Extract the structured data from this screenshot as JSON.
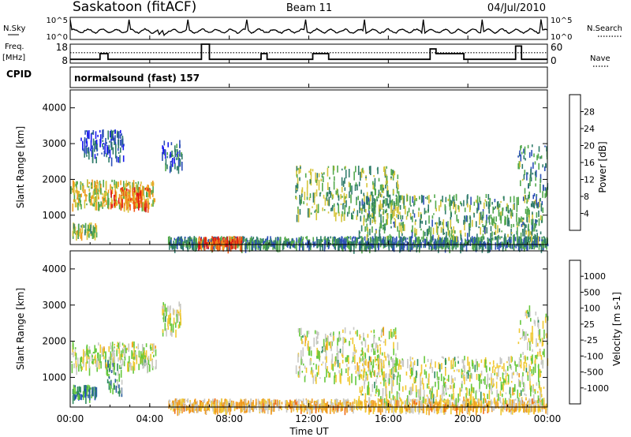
{
  "header": {
    "title": "Saskatoon (fitACF)",
    "beam": "Beam 11",
    "date": "04/Jul/2010"
  },
  "left_labels": {
    "nsky": "N.Sky",
    "freq": "Freq.",
    "freq_unit": "[MHz]",
    "cpid": "CPID"
  },
  "right_labels": {
    "nsearch": "N.Search",
    "nave": "Nave"
  },
  "strip_ticks": {
    "nsky_left": [
      "10^5",
      "10^0"
    ],
    "nsky_right": [
      "10^5",
      "10^0"
    ],
    "freq_left": [
      "18",
      "8"
    ],
    "nave_right": [
      "60",
      "0"
    ]
  },
  "cpid_text": "normalsound (fast) 157",
  "xlabel": "Time UT",
  "x_ticks": [
    "00:00",
    "04:00",
    "08:00",
    "12:00",
    "16:00",
    "20:00",
    "00:00"
  ],
  "chart_data": [
    {
      "type": "heatmap",
      "name": "power",
      "ylabel": "Slant Range [km]",
      "y_ticks": [
        "1000",
        "2000",
        "3000",
        "4000"
      ],
      "ylim": [
        180,
        4500
      ],
      "xlim_hours": [
        0,
        24
      ],
      "colorbar_label": "Power [dB]",
      "colorbar_ticks": [
        "4",
        "8",
        "12",
        "16",
        "20",
        "24",
        "28"
      ],
      "colorbar_colors": [
        "#1b1bf0",
        "#2c4fb8",
        "#2e7b6a",
        "#52a84c",
        "#d6c53a",
        "#f09a1e",
        "#f05a14",
        "#e01414"
      ],
      "echo_regions": [
        {
          "t": [
            0.0,
            4.3
          ],
          "r": [
            1300,
            2000
          ],
          "level": 0.55
        },
        {
          "t": [
            2.0,
            4.0
          ],
          "r": [
            1300,
            1800
          ],
          "level": 0.78
        },
        {
          "t": [
            0.1,
            1.3
          ],
          "r": [
            500,
            800
          ],
          "level": 0.5
        },
        {
          "t": [
            0.5,
            2.7
          ],
          "r": [
            2600,
            3400
          ],
          "level": 0.2
        },
        {
          "t": [
            4.6,
            5.6
          ],
          "r": [
            2300,
            3100
          ],
          "level": 0.25
        },
        {
          "t": [
            4.9,
            24.0
          ],
          "r": [
            180,
            420
          ],
          "level": 0.32
        },
        {
          "t": [
            6.4,
            8.6
          ],
          "r": [
            180,
            420
          ],
          "level": 0.8
        },
        {
          "t": [
            11.3,
            16.5
          ],
          "r": [
            1000,
            2400
          ],
          "level": 0.45
        },
        {
          "t": [
            14.5,
            23.8
          ],
          "r": [
            400,
            1600
          ],
          "level": 0.4
        },
        {
          "t": [
            22.5,
            24.0
          ],
          "r": [
            1300,
            3000
          ],
          "level": 0.35
        }
      ]
    },
    {
      "type": "heatmap",
      "name": "velocity",
      "ylabel": "Slant Range [km]",
      "y_ticks": [
        "1000",
        "2000",
        "3000",
        "4000"
      ],
      "ylim": [
        180,
        4500
      ],
      "xlim_hours": [
        0,
        24
      ],
      "colorbar_label": "Velocity [m s-1]",
      "colorbar_ticks": [
        "1000",
        "500",
        "100",
        "25",
        "-25",
        "-100",
        "-500",
        "-1000"
      ],
      "colorbar_colors": [
        "#1b3fd0",
        "#2c5fa0",
        "#2e8c5e",
        "#66c83c",
        "#c8c8c4",
        "#f0c830",
        "#f09a1e",
        "#f06a14",
        "#e01414"
      ],
      "echo_regions": [
        {
          "t": [
            0.0,
            4.3
          ],
          "r": [
            1300,
            2000
          ],
          "level": 0.5
        },
        {
          "t": [
            0.1,
            1.3
          ],
          "r": [
            500,
            800
          ],
          "level": 0.25
        },
        {
          "t": [
            1.8,
            2.6
          ],
          "r": [
            600,
            1500
          ],
          "level": 0.3
        },
        {
          "t": [
            4.6,
            5.6
          ],
          "r": [
            2300,
            3100
          ],
          "level": 0.5
        },
        {
          "t": [
            4.9,
            24.0
          ],
          "r": [
            180,
            420
          ],
          "level": 0.62
        },
        {
          "t": [
            11.3,
            16.5
          ],
          "r": [
            1000,
            2400
          ],
          "level": 0.5
        },
        {
          "t": [
            14.5,
            23.8
          ],
          "r": [
            400,
            1600
          ],
          "level": 0.5
        },
        {
          "t": [
            22.5,
            24.0
          ],
          "r": [
            1300,
            3000
          ],
          "level": 0.5
        }
      ]
    }
  ],
  "strip_data": {
    "nave_steps": [
      {
        "t": 0.0,
        "v": 0.2
      },
      {
        "t": 1.5,
        "v": 0.5
      },
      {
        "t": 1.9,
        "v": 0.2
      },
      {
        "t": 6.6,
        "v": 1.0
      },
      {
        "t": 7.0,
        "v": 0.2
      },
      {
        "t": 9.6,
        "v": 0.5
      },
      {
        "t": 9.9,
        "v": 0.2
      },
      {
        "t": 12.2,
        "v": 0.5
      },
      {
        "t": 13.0,
        "v": 0.2
      },
      {
        "t": 18.1,
        "v": 0.75
      },
      {
        "t": 18.4,
        "v": 0.5
      },
      {
        "t": 19.8,
        "v": 0.2
      },
      {
        "t": 22.4,
        "v": 0.9
      },
      {
        "t": 22.7,
        "v": 0.2
      },
      {
        "t": 24.0,
        "v": 0.2
      }
    ],
    "freq_ref": 0.55
  }
}
